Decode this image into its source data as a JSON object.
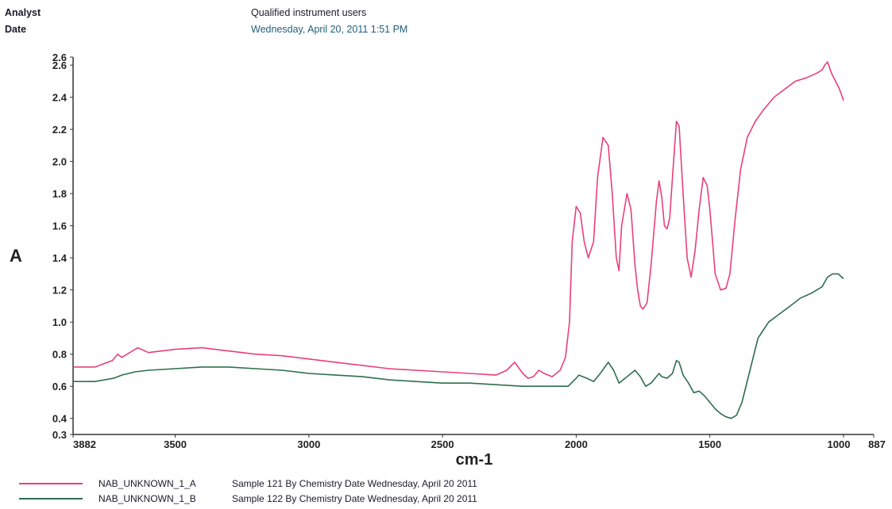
{
  "header": {
    "analyst_label": "Analyst",
    "analyst_value": "Qualified instrument users",
    "date_label": "Date",
    "date_value": "Wednesday, April 20, 2011 1:51 PM"
  },
  "colors": {
    "series_a": "#e8407a",
    "series_b": "#2e6e4e",
    "axis": "#333333"
  },
  "chart_data": {
    "type": "line",
    "xlabel": "cm-1",
    "ylabel": "A",
    "xlim": [
      3882,
      887
    ],
    "ylim": [
      0.3,
      2.65
    ],
    "x_tick_labels": [
      {
        "value": 3882,
        "label": "3882"
      },
      {
        "value": 3500,
        "label": "3500"
      },
      {
        "value": 3000,
        "label": "3000"
      },
      {
        "value": 2500,
        "label": "2500"
      },
      {
        "value": 2000,
        "label": "2000"
      },
      {
        "value": 1500,
        "label": "1500"
      },
      {
        "value": 1000,
        "label": "1000"
      },
      {
        "value": 887,
        "label": "887"
      }
    ],
    "y_tick_labels": [
      {
        "value": 2.65,
        "label": "2.6"
      },
      {
        "value": 2.6,
        "label": "2.6"
      },
      {
        "value": 2.4,
        "label": "2.4"
      },
      {
        "value": 2.2,
        "label": "2.2"
      },
      {
        "value": 2.0,
        "label": "2.0"
      },
      {
        "value": 1.8,
        "label": "1.8"
      },
      {
        "value": 1.6,
        "label": "1.6"
      },
      {
        "value": 1.4,
        "label": "1.4"
      },
      {
        "value": 1.2,
        "label": "1.2"
      },
      {
        "value": 1.0,
        "label": "1.0"
      },
      {
        "value": 0.8,
        "label": "0.8"
      },
      {
        "value": 0.6,
        "label": "0.6"
      },
      {
        "value": 0.4,
        "label": "0.4"
      },
      {
        "value": 0.3,
        "label": "0.3"
      }
    ],
    "legend": "bottom-left",
    "series": [
      {
        "name": "NAB_UNKNOWN_1_A",
        "description": "Sample 121 By Chemistry Date Wednesday, April 20 2011",
        "x": [
          3882,
          3800,
          3735,
          3715,
          3700,
          3660,
          3640,
          3600,
          3500,
          3400,
          3300,
          3200,
          3100,
          3000,
          2900,
          2800,
          2700,
          2600,
          2500,
          2400,
          2300,
          2260,
          2230,
          2200,
          2180,
          2160,
          2140,
          2120,
          2090,
          2060,
          2040,
          2025,
          2015,
          2000,
          1985,
          1970,
          1955,
          1935,
          1920,
          1900,
          1880,
          1865,
          1850,
          1840,
          1830,
          1810,
          1795,
          1780,
          1770,
          1760,
          1750,
          1735,
          1720,
          1700,
          1690,
          1680,
          1670,
          1660,
          1650,
          1640,
          1625,
          1615,
          1600,
          1585,
          1570,
          1555,
          1540,
          1525,
          1510,
          1500,
          1490,
          1480,
          1460,
          1440,
          1425,
          1405,
          1385,
          1360,
          1330,
          1300,
          1260,
          1220,
          1180,
          1140,
          1100,
          1080,
          1070,
          1060,
          1045,
          1030,
          1015,
          1000
        ],
        "y": [
          0.72,
          0.72,
          0.76,
          0.8,
          0.78,
          0.82,
          0.84,
          0.81,
          0.83,
          0.84,
          0.82,
          0.8,
          0.79,
          0.77,
          0.75,
          0.73,
          0.71,
          0.7,
          0.69,
          0.68,
          0.67,
          0.7,
          0.75,
          0.68,
          0.65,
          0.66,
          0.7,
          0.68,
          0.66,
          0.7,
          0.78,
          1.0,
          1.5,
          1.72,
          1.68,
          1.5,
          1.4,
          1.5,
          1.9,
          2.15,
          2.1,
          1.8,
          1.4,
          1.32,
          1.6,
          1.8,
          1.7,
          1.35,
          1.2,
          1.1,
          1.08,
          1.12,
          1.35,
          1.75,
          1.88,
          1.78,
          1.6,
          1.58,
          1.65,
          1.9,
          2.25,
          2.22,
          1.8,
          1.4,
          1.28,
          1.45,
          1.7,
          1.9,
          1.85,
          1.7,
          1.5,
          1.3,
          1.2,
          1.21,
          1.3,
          1.65,
          1.95,
          2.15,
          2.25,
          2.32,
          2.4,
          2.45,
          2.5,
          2.52,
          2.55,
          2.57,
          2.6,
          2.62,
          2.55,
          2.5,
          2.45,
          2.38
        ]
      },
      {
        "name": "NAB_UNKNOWN_1_B",
        "description": "Sample 122 By Chemistry Date Wednesday, April 20 2011",
        "x": [
          3882,
          3800,
          3730,
          3700,
          3650,
          3600,
          3500,
          3400,
          3300,
          3200,
          3100,
          3000,
          2900,
          2800,
          2700,
          2600,
          2500,
          2400,
          2300,
          2200,
          2100,
          2030,
          2000,
          1990,
          1960,
          1935,
          1910,
          1880,
          1860,
          1840,
          1810,
          1780,
          1760,
          1740,
          1720,
          1700,
          1690,
          1680,
          1660,
          1640,
          1625,
          1615,
          1600,
          1580,
          1560,
          1540,
          1520,
          1500,
          1480,
          1460,
          1440,
          1420,
          1400,
          1380,
          1350,
          1320,
          1280,
          1240,
          1200,
          1160,
          1120,
          1080,
          1060,
          1040,
          1020,
          1000
        ],
        "y": [
          0.63,
          0.63,
          0.65,
          0.67,
          0.69,
          0.7,
          0.71,
          0.72,
          0.72,
          0.71,
          0.7,
          0.68,
          0.67,
          0.66,
          0.64,
          0.63,
          0.62,
          0.62,
          0.61,
          0.6,
          0.6,
          0.6,
          0.65,
          0.67,
          0.65,
          0.63,
          0.68,
          0.75,
          0.7,
          0.62,
          0.66,
          0.7,
          0.66,
          0.6,
          0.62,
          0.66,
          0.68,
          0.66,
          0.65,
          0.68,
          0.76,
          0.75,
          0.67,
          0.62,
          0.56,
          0.57,
          0.54,
          0.5,
          0.46,
          0.43,
          0.41,
          0.4,
          0.42,
          0.5,
          0.7,
          0.9,
          1.0,
          1.05,
          1.1,
          1.15,
          1.18,
          1.22,
          1.28,
          1.3,
          1.3,
          1.27
        ]
      }
    ]
  }
}
